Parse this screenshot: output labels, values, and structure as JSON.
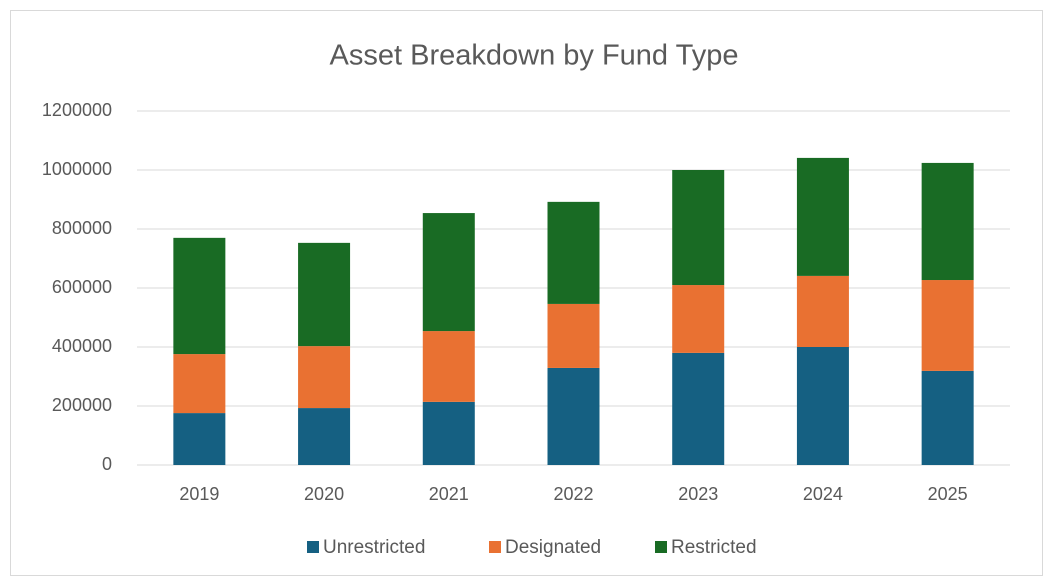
{
  "chart_data": {
    "type": "stacked_bar",
    "title": "Asset Breakdown by Fund Type",
    "categories": [
      "2019",
      "2020",
      "2021",
      "2022",
      "2023",
      "2024",
      "2025"
    ],
    "series": [
      {
        "name": "Unrestricted",
        "color": "#156082",
        "values": [
          176000,
          193000,
          214000,
          329000,
          380000,
          400000,
          319000
        ]
      },
      {
        "name": "Designated",
        "color": "#e97132",
        "values": [
          200000,
          210000,
          240000,
          217000,
          230000,
          241000,
          308000
        ]
      },
      {
        "name": "Restricted",
        "color": "#196b24",
        "values": [
          394000,
          350000,
          400000,
          346000,
          390000,
          400000,
          397000
        ]
      }
    ],
    "ylim": [
      0,
      1200000
    ],
    "yticks": [
      0,
      200000,
      400000,
      600000,
      800000,
      1000000,
      1200000
    ],
    "grid": true,
    "legend": "bottom"
  }
}
